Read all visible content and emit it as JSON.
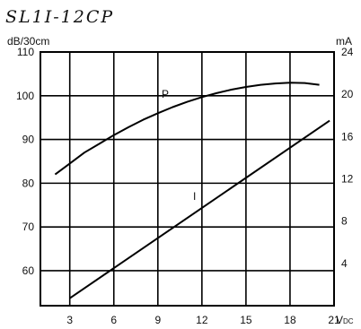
{
  "chart_data": {
    "type": "line",
    "title": "SL1I-12CP",
    "x_unit": "V",
    "x_unit_sub": "DC",
    "left_unit": "dB/30cm",
    "right_unit": "mA",
    "xlim": [
      1,
      21
    ],
    "x_ticks": [
      "3",
      "6",
      "9",
      "12",
      "15",
      "18",
      "21"
    ],
    "x_tick_values": [
      3,
      6,
      9,
      12,
      15,
      18,
      21
    ],
    "left_ylim": [
      52,
      110
    ],
    "left_ticks": [
      "60",
      "70",
      "80",
      "90",
      "100",
      "110"
    ],
    "left_tick_values": [
      60,
      70,
      80,
      90,
      100,
      110
    ],
    "right_ylim": [
      0,
      24
    ],
    "right_ticks": [
      "4",
      "8",
      "12",
      "16",
      "20",
      "24"
    ],
    "right_tick_values": [
      4,
      8,
      12,
      16,
      20,
      24
    ],
    "grid": true,
    "series": [
      {
        "name": "P",
        "axis": "left",
        "x": [
          2,
          3,
          4,
          5,
          6,
          7,
          8,
          9,
          10,
          11,
          12,
          13,
          14,
          15,
          16,
          17,
          18,
          19,
          20
        ],
        "y": [
          82,
          84.5,
          87,
          89,
          91,
          92.8,
          94.5,
          96,
          97.4,
          98.6,
          99.7,
          100.6,
          101.4,
          102,
          102.5,
          102.8,
          103,
          102.9,
          102.5
        ],
        "label_at": [
          9.5,
          99.5
        ]
      },
      {
        "name": "I",
        "axis": "right",
        "x": [
          3,
          20.7
        ],
        "y": [
          0.7,
          17.5
        ],
        "label_at": [
          11.5,
          10
        ]
      }
    ]
  }
}
